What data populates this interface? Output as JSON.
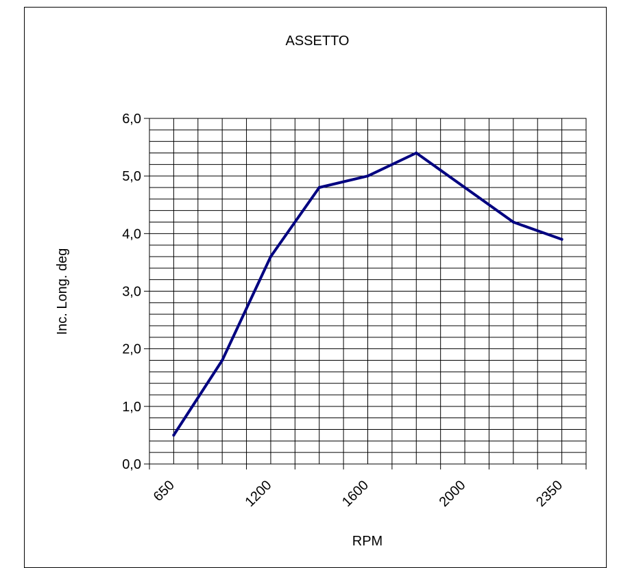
{
  "chart_data": {
    "type": "line",
    "title": "ASSETTO",
    "xlabel": "RPM",
    "ylabel": "Inc. Long. deg",
    "x_tick_labels": [
      {
        "label": "650",
        "slot": 0
      },
      {
        "label": "1200",
        "slot": 4
      },
      {
        "label": "1600",
        "slot": 8
      },
      {
        "label": "2000",
        "slot": 12
      },
      {
        "label": "2350",
        "slot": 16
      }
    ],
    "ylim": [
      0,
      6
    ],
    "y_ticks": [
      "0,0",
      "1,0",
      "2,0",
      "3,0",
      "4,0",
      "5,0",
      "6,0"
    ],
    "grid": true,
    "legend": "none",
    "series": [
      {
        "color": "#000080",
        "points": [
          {
            "slot": 0,
            "y": 0.5
          },
          {
            "slot": 2,
            "y": 1.8
          },
          {
            "slot": 4,
            "y": 3.6
          },
          {
            "slot": 6,
            "y": 4.8
          },
          {
            "slot": 8,
            "y": 5.0
          },
          {
            "slot": 10,
            "y": 5.4
          },
          {
            "slot": 12,
            "y": 4.8
          },
          {
            "slot": 14,
            "y": 4.2
          },
          {
            "slot": 16,
            "y": 3.9
          }
        ]
      }
    ]
  }
}
